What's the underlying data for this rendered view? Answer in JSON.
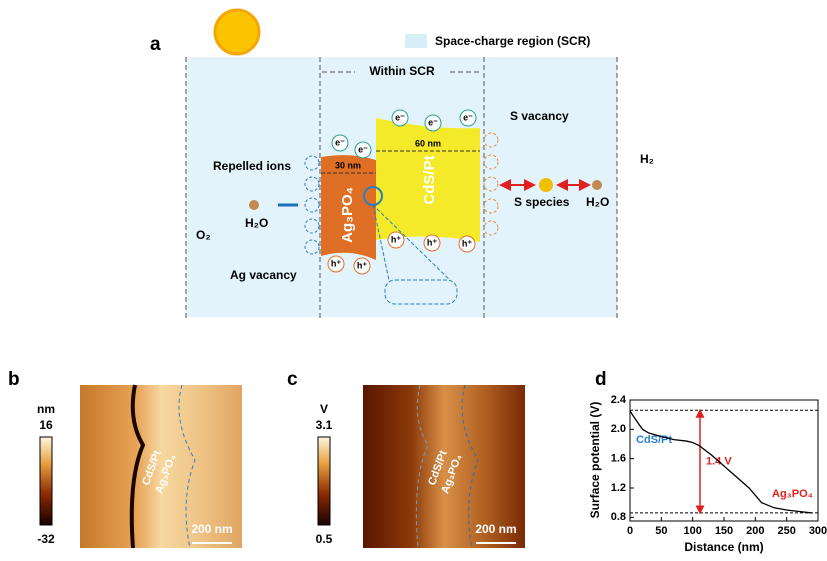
{
  "panel_a": {
    "letter": "a",
    "legend": "Space-charge region (SCR)",
    "within": "Within SCR",
    "electron": "e⁻",
    "hole": "h⁺",
    "s_vacancy": "S vacancy",
    "thickness_cds": "60 nm",
    "thickness_ag": "30 nm",
    "repelled": "Repelled ions",
    "ag_block": "Ag₃PO₄",
    "cds_block": "CdS/Pt",
    "s_species": "S species",
    "water": "H₂O",
    "h2": "H₂",
    "o2": "O₂",
    "ag_vacancy": "Ag vacancy"
  },
  "panel_b": {
    "letter": "b",
    "unit": "nm",
    "max": 16,
    "min": -32,
    "label1": "CdS/Pt",
    "label2": "Ag₃PO₄",
    "scale": "200 nm"
  },
  "panel_c": {
    "letter": "c",
    "unit": "V",
    "max": 3.1,
    "min": 0.5,
    "label1": "CdS/Pt",
    "label2": "Ag₃PO₄",
    "scale": "200 nm"
  },
  "chart_data": {
    "type": "line",
    "letter": "d",
    "x_label": "Distance (nm)",
    "y_label": "Surface potential (V)",
    "x": [
      0,
      10,
      20,
      30,
      50,
      70,
      90,
      100,
      110,
      130,
      150,
      170,
      190,
      210,
      230,
      250,
      270,
      290
    ],
    "series": [
      {
        "name": "Surface potential",
        "color": "#000000",
        "values": [
          2.25,
          2.12,
          2.0,
          1.95,
          1.9,
          1.86,
          1.84,
          1.82,
          1.78,
          1.65,
          1.5,
          1.35,
          1.2,
          1.0,
          0.93,
          0.9,
          0.88,
          0.86
        ]
      }
    ],
    "reference_lines": [
      2.26,
      0.86
    ],
    "annotation": "1.4 V",
    "label_left": "CdS/Pt",
    "label_right": "Ag₃PO₄",
    "xlim": [
      0,
      300
    ],
    "ylim": [
      0.75,
      2.4
    ],
    "xticks": [
      0,
      50,
      100,
      150,
      200,
      250,
      300
    ],
    "yticks": [
      {
        "value": 0.8,
        "label": "0.8"
      },
      1.2,
      1.6,
      {
        "value": 2,
        "label": "2.0"
      },
      2.4
    ]
  }
}
